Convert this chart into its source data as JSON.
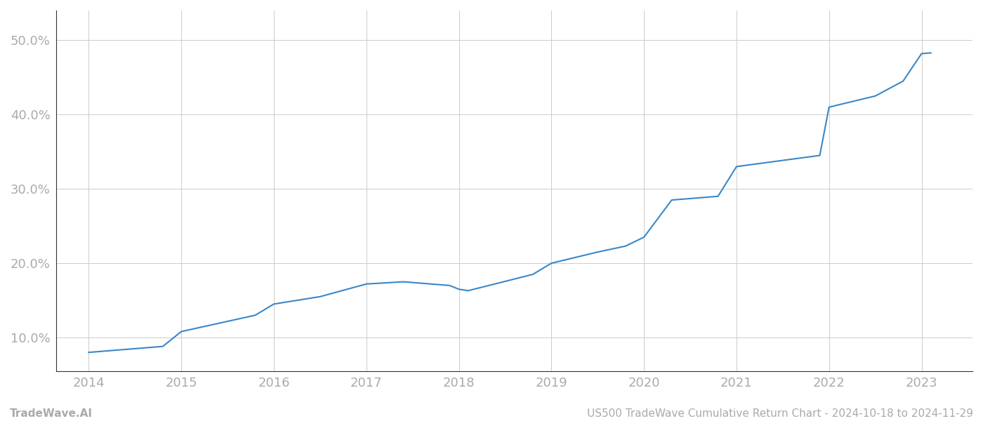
{
  "x_values": [
    2014.0,
    2014.8,
    2015.0,
    2015.8,
    2016.0,
    2016.5,
    2017.0,
    2017.4,
    2017.9,
    2018.0,
    2018.1,
    2018.8,
    2019.0,
    2019.5,
    2019.8,
    2020.0,
    2020.3,
    2020.8,
    2021.0,
    2021.3,
    2021.9,
    2022.0,
    2022.5,
    2022.8,
    2023.0,
    2023.1
  ],
  "y_values": [
    8.0,
    8.8,
    10.8,
    13.0,
    14.5,
    15.5,
    17.2,
    17.5,
    17.0,
    16.5,
    16.3,
    18.5,
    20.0,
    21.5,
    22.3,
    23.5,
    28.5,
    29.0,
    33.0,
    33.5,
    34.5,
    41.0,
    42.5,
    44.5,
    48.2,
    48.3
  ],
  "line_color": "#3a87c8",
  "background_color": "#ffffff",
  "grid_color": "#cccccc",
  "x_tick_labels": [
    "2014",
    "2015",
    "2016",
    "2017",
    "2018",
    "2019",
    "2020",
    "2021",
    "2022",
    "2023"
  ],
  "x_tick_positions": [
    2014,
    2015,
    2016,
    2017,
    2018,
    2019,
    2020,
    2021,
    2022,
    2023
  ],
  "y_ticks": [
    10.0,
    20.0,
    30.0,
    40.0,
    50.0
  ],
  "y_tick_labels": [
    "10.0%",
    "20.0%",
    "30.0%",
    "40.0%",
    "50.0%"
  ],
  "ylim": [
    5.5,
    54.0
  ],
  "xlim": [
    2013.65,
    2023.55
  ],
  "footer_left": "TradeWave.AI",
  "footer_right": "US500 TradeWave Cumulative Return Chart - 2024-10-18 to 2024-11-29",
  "footer_color": "#aaaaaa",
  "footer_fontsize": 11,
  "line_width": 1.5,
  "tick_label_color": "#aaaaaa",
  "tick_label_fontsize": 13,
  "spine_color": "#333333"
}
